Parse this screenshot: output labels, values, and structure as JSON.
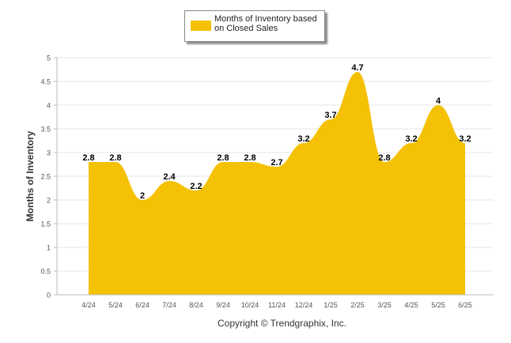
{
  "chart_data": {
    "type": "area",
    "categories": [
      "4/24",
      "5/24",
      "6/24",
      "7/24",
      "8/24",
      "9/24",
      "10/24",
      "11/24",
      "12/24",
      "1/25",
      "2/25",
      "3/25",
      "4/25",
      "5/25",
      "6/25"
    ],
    "series": [
      {
        "name": "Months of Inventory based on Closed Sales",
        "values": [
          2.8,
          2.8,
          2,
          2.4,
          2.2,
          2.8,
          2.8,
          2.7,
          3.2,
          3.7,
          4.7,
          2.8,
          3.2,
          4,
          3.2
        ],
        "color": "#f5c105"
      }
    ],
    "data_labels": [
      "2.8",
      "2.8",
      "2",
      "2.4",
      "2.2",
      "2.8",
      "2.8",
      "2.7",
      "3.2",
      "3.7",
      "4.7",
      "2.8",
      "3.2",
      "4",
      "3.2"
    ],
    "ylabel": "Months of Inventory",
    "xlabel": "",
    "ylim": [
      0,
      5
    ],
    "yticks": [
      "0",
      "0.5",
      "1",
      "1.5",
      "2",
      "2.5",
      "3",
      "3.5",
      "4",
      "4.5",
      "5"
    ],
    "grid": true,
    "legend_position": "top-center"
  },
  "footer": {
    "copyright": "Copyright © Trendgraphix, Inc."
  },
  "colors": {
    "fill": "#f5c105",
    "grid": "#e6e6e6",
    "axis": "#bbbbbb"
  }
}
